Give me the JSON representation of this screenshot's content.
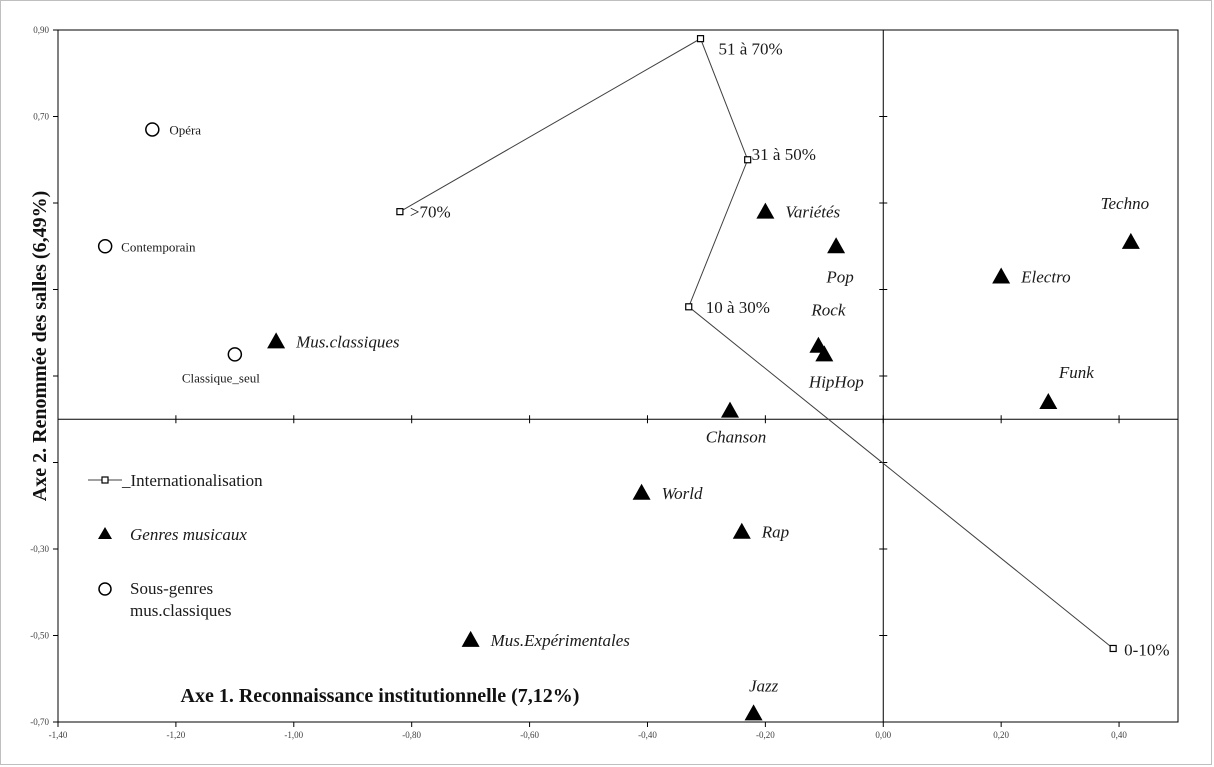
{
  "chart_data": {
    "type": "scatter",
    "title": "",
    "xlabel": "Axe 1. Reconnaissance institutionnelle (7,12%)",
    "ylabel": "Axe 2. Renommée des salles (6,49%)",
    "xlim": [
      -1.4,
      0.5
    ],
    "ylim": [
      -0.7,
      0.9
    ],
    "x_ticks": [
      "-1,40",
      "-1,20",
      "-1,00",
      "-0,80",
      "-0,60",
      "-0,40",
      "-0,20",
      "0,00",
      "0,20",
      "0,40"
    ],
    "y_ticks": [
      "0,90",
      "0,70",
      "-0,30",
      "-0,50",
      "-0,70"
    ],
    "grid": false,
    "legend_position": "left",
    "series": [
      {
        "name": "_Internationalisation",
        "marker": "small-square",
        "connected": true,
        "points": [
          {
            "label": ">70%",
            "x": -0.82,
            "y": 0.48
          },
          {
            "label": "51 à 70%",
            "x": -0.31,
            "y": 0.88
          },
          {
            "label": "31 à 50%",
            "x": -0.23,
            "y": 0.6
          },
          {
            "label": "10 à 30%",
            "x": -0.33,
            "y": 0.26
          },
          {
            "label": "0-10%",
            "x": 0.39,
            "y": -0.53
          }
        ]
      },
      {
        "name": "Genres musicaux",
        "marker": "triangle",
        "points": [
          {
            "label": "Mus.classiques",
            "x": -1.03,
            "y": 0.18
          },
          {
            "label": "Variétés",
            "x": -0.2,
            "y": 0.48
          },
          {
            "label": "Pop",
            "x": -0.08,
            "y": 0.4
          },
          {
            "label": "Techno",
            "x": 0.42,
            "y": 0.41
          },
          {
            "label": "Electro",
            "x": 0.2,
            "y": 0.33
          },
          {
            "label": "Rock",
            "x": -0.11,
            "y": 0.17
          },
          {
            "label": "HipHop",
            "x": -0.1,
            "y": 0.15
          },
          {
            "label": "Funk",
            "x": 0.28,
            "y": 0.04
          },
          {
            "label": "Chanson",
            "x": -0.26,
            "y": 0.02
          },
          {
            "label": "World",
            "x": -0.41,
            "y": -0.17
          },
          {
            "label": "Rap",
            "x": -0.24,
            "y": -0.26
          },
          {
            "label": "Mus.Expérimentales",
            "x": -0.7,
            "y": -0.51
          },
          {
            "label": "Jazz",
            "x": -0.22,
            "y": -0.68
          }
        ]
      },
      {
        "name": "Sous-genres mus.classiques",
        "marker": "circle",
        "points": [
          {
            "label": "Opéra",
            "x": -1.24,
            "y": 0.67
          },
          {
            "label": "Contemporain",
            "x": -1.32,
            "y": 0.4
          },
          {
            "label": "Classique_seul",
            "x": -1.1,
            "y": 0.15
          }
        ]
      }
    ]
  },
  "legend": {
    "items": [
      {
        "label": "_Internationalisation"
      },
      {
        "label": "Genres musicaux"
      },
      {
        "label": "Sous-genres\nmus.classiques"
      }
    ]
  },
  "colors": {
    "marker": "#000000",
    "line": "#404040",
    "axis": "#000000"
  }
}
